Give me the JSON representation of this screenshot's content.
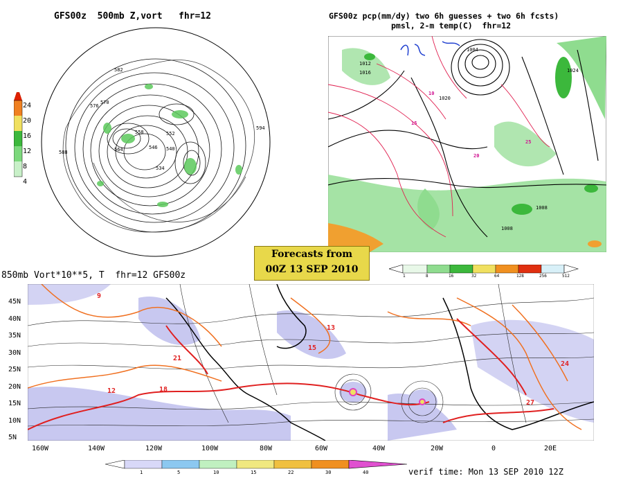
{
  "polar_panel": {
    "title": "GFS00z  500mb Z,vort   fhr=12",
    "legend": [
      "24",
      "20",
      "16",
      "12",
      "8",
      "4"
    ],
    "contour_labels": [
      "582",
      "576",
      "570",
      "564",
      "558",
      "552",
      "546",
      "540",
      "534",
      "588",
      "594"
    ]
  },
  "precip_panel": {
    "title_line1": "GFS00z pcp(mm/dy) two 6h guesses + two 6h fcsts)",
    "title_line2": "pmsl, 2-m temp(C)  fhr=12",
    "legend": [
      "1",
      "8",
      "16",
      "32",
      "64",
      "128",
      "256",
      "512"
    ],
    "pressure_labels": [
      "1012",
      "1016",
      "1020",
      "1024",
      "1008",
      "1004",
      "1008"
    ],
    "temp_labels": [
      "10",
      "15",
      "20",
      "25"
    ]
  },
  "forecast_box": {
    "line1": "Forecasts from",
    "line2": "00Z 13 SEP 2010"
  },
  "vort_panel": {
    "title": "850mb Vort*10**5, T  fhr=12 GFS00z",
    "lat_labels": [
      "45N",
      "40N",
      "35N",
      "30N",
      "25N",
      "20N",
      "15N",
      "10N",
      "5N"
    ],
    "lon_labels": [
      "160W",
      "140W",
      "120W",
      "100W",
      "80W",
      "60W",
      "40W",
      "20W",
      "0",
      "20E"
    ],
    "legend": [
      "1",
      "5",
      "10",
      "15",
      "22",
      "30",
      "40"
    ],
    "temp_labels": [
      "9",
      "12",
      "15",
      "18",
      "21",
      "24",
      "27",
      "13"
    ],
    "verif": "verif time: Mon 13 SEP 2010 12Z"
  },
  "colors": {
    "precip_green": "#5cc95c",
    "vort_lavender": "#c8c8f0",
    "contour_orange": "#f07020",
    "contour_red": "#e02020",
    "box_yellow": "#e8d84a"
  }
}
